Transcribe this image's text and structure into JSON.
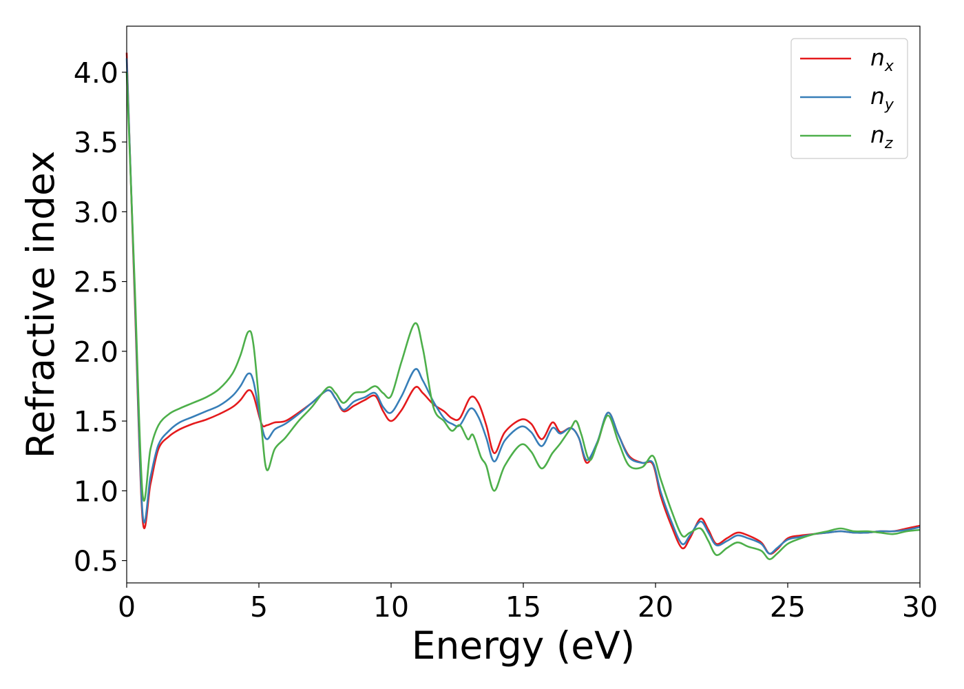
{
  "chart_data": {
    "type": "line",
    "xlabel": "Energy (eV)",
    "ylabel": "Refractive index",
    "xlim": [
      0,
      30
    ],
    "ylim": [
      0.34,
      4.33
    ],
    "x_ticks": [
      0,
      5,
      10,
      15,
      20,
      25,
      30
    ],
    "x_tick_labels": [
      "0",
      "5",
      "10",
      "15",
      "20",
      "25",
      "30"
    ],
    "y_ticks": [
      0.5,
      1.0,
      1.5,
      2.0,
      2.5,
      3.0,
      3.5,
      4.0
    ],
    "y_tick_labels": [
      "0.5",
      "1.0",
      "1.5",
      "2.0",
      "2.5",
      "3.0",
      "3.5",
      "4.0"
    ],
    "grid": false,
    "legend_position": "top-right",
    "series": [
      {
        "name": "n",
        "subscript": "x",
        "color": "#e41a1c",
        "points": [
          [
            0,
            4.14
          ],
          [
            0.3,
            2.4
          ],
          [
            0.6,
            0.8
          ],
          [
            0.9,
            1.05
          ],
          [
            1.2,
            1.3
          ],
          [
            1.6,
            1.39
          ],
          [
            2,
            1.44
          ],
          [
            2.5,
            1.48
          ],
          [
            3,
            1.51
          ],
          [
            3.5,
            1.55
          ],
          [
            4,
            1.6
          ],
          [
            4.3,
            1.65
          ],
          [
            4.6,
            1.72
          ],
          [
            4.8,
            1.68
          ],
          [
            5.1,
            1.48
          ],
          [
            5.3,
            1.47
          ],
          [
            5.6,
            1.49
          ],
          [
            6,
            1.5
          ],
          [
            6.5,
            1.56
          ],
          [
            7,
            1.63
          ],
          [
            7.6,
            1.72
          ],
          [
            7.9,
            1.66
          ],
          [
            8.2,
            1.57
          ],
          [
            8.6,
            1.61
          ],
          [
            9,
            1.65
          ],
          [
            9.4,
            1.68
          ],
          [
            9.7,
            1.57
          ],
          [
            10,
            1.5
          ],
          [
            10.4,
            1.58
          ],
          [
            10.9,
            1.74
          ],
          [
            11.2,
            1.7
          ],
          [
            11.6,
            1.62
          ],
          [
            12,
            1.57
          ],
          [
            12.3,
            1.52
          ],
          [
            12.6,
            1.52
          ],
          [
            13,
            1.67
          ],
          [
            13.3,
            1.63
          ],
          [
            13.6,
            1.47
          ],
          [
            13.9,
            1.27
          ],
          [
            14.3,
            1.42
          ],
          [
            14.9,
            1.51
          ],
          [
            15.3,
            1.48
          ],
          [
            15.7,
            1.37
          ],
          [
            16.1,
            1.49
          ],
          [
            16.4,
            1.42
          ],
          [
            16.8,
            1.45
          ],
          [
            17.1,
            1.38
          ],
          [
            17.4,
            1.2
          ],
          [
            17.8,
            1.34
          ],
          [
            18.2,
            1.56
          ],
          [
            18.6,
            1.4
          ],
          [
            19,
            1.25
          ],
          [
            19.5,
            1.2
          ],
          [
            19.9,
            1.19
          ],
          [
            20.2,
            0.96
          ],
          [
            20.6,
            0.75
          ],
          [
            21,
            0.59
          ],
          [
            21.3,
            0.66
          ],
          [
            21.7,
            0.8
          ],
          [
            22,
            0.72
          ],
          [
            22.3,
            0.62
          ],
          [
            22.7,
            0.66
          ],
          [
            23.1,
            0.7
          ],
          [
            23.5,
            0.68
          ],
          [
            24,
            0.63
          ],
          [
            24.3,
            0.55
          ],
          [
            24.6,
            0.58
          ],
          [
            25,
            0.66
          ],
          [
            25.5,
            0.68
          ],
          [
            26,
            0.69
          ],
          [
            26.5,
            0.7
          ],
          [
            27,
            0.71
          ],
          [
            27.5,
            0.7
          ],
          [
            28,
            0.7
          ],
          [
            28.5,
            0.71
          ],
          [
            29,
            0.71
          ],
          [
            29.5,
            0.73
          ],
          [
            30,
            0.75
          ]
        ]
      },
      {
        "name": "n",
        "subscript": "y",
        "color": "#377eb8",
        "points": [
          [
            0,
            4.1
          ],
          [
            0.3,
            2.45
          ],
          [
            0.6,
            0.84
          ],
          [
            0.9,
            1.1
          ],
          [
            1.2,
            1.33
          ],
          [
            1.6,
            1.43
          ],
          [
            2,
            1.49
          ],
          [
            2.5,
            1.53
          ],
          [
            3,
            1.57
          ],
          [
            3.5,
            1.61
          ],
          [
            4,
            1.68
          ],
          [
            4.3,
            1.75
          ],
          [
            4.6,
            1.84
          ],
          [
            4.8,
            1.78
          ],
          [
            5.1,
            1.47
          ],
          [
            5.3,
            1.37
          ],
          [
            5.6,
            1.44
          ],
          [
            6,
            1.48
          ],
          [
            6.5,
            1.55
          ],
          [
            7,
            1.63
          ],
          [
            7.6,
            1.72
          ],
          [
            7.9,
            1.66
          ],
          [
            8.2,
            1.58
          ],
          [
            8.6,
            1.64
          ],
          [
            9,
            1.67
          ],
          [
            9.4,
            1.7
          ],
          [
            9.7,
            1.6
          ],
          [
            10,
            1.56
          ],
          [
            10.4,
            1.68
          ],
          [
            10.9,
            1.87
          ],
          [
            11.2,
            1.79
          ],
          [
            11.6,
            1.64
          ],
          [
            12,
            1.52
          ],
          [
            12.3,
            1.48
          ],
          [
            12.6,
            1.47
          ],
          [
            13,
            1.59
          ],
          [
            13.3,
            1.53
          ],
          [
            13.6,
            1.38
          ],
          [
            13.9,
            1.21
          ],
          [
            14.3,
            1.36
          ],
          [
            14.9,
            1.46
          ],
          [
            15.3,
            1.42
          ],
          [
            15.7,
            1.32
          ],
          [
            16.1,
            1.45
          ],
          [
            16.4,
            1.41
          ],
          [
            16.8,
            1.45
          ],
          [
            17.1,
            1.38
          ],
          [
            17.4,
            1.22
          ],
          [
            17.8,
            1.35
          ],
          [
            18.2,
            1.56
          ],
          [
            18.6,
            1.4
          ],
          [
            19,
            1.24
          ],
          [
            19.5,
            1.2
          ],
          [
            19.9,
            1.2
          ],
          [
            20.2,
            0.99
          ],
          [
            20.6,
            0.78
          ],
          [
            21,
            0.62
          ],
          [
            21.3,
            0.68
          ],
          [
            21.7,
            0.78
          ],
          [
            22,
            0.7
          ],
          [
            22.3,
            0.61
          ],
          [
            22.7,
            0.64
          ],
          [
            23.1,
            0.68
          ],
          [
            23.5,
            0.66
          ],
          [
            24,
            0.62
          ],
          [
            24.3,
            0.55
          ],
          [
            24.6,
            0.59
          ],
          [
            25,
            0.65
          ],
          [
            25.5,
            0.67
          ],
          [
            26,
            0.69
          ],
          [
            26.5,
            0.7
          ],
          [
            27,
            0.71
          ],
          [
            27.5,
            0.7
          ],
          [
            28,
            0.7
          ],
          [
            28.5,
            0.71
          ],
          [
            29,
            0.71
          ],
          [
            29.5,
            0.72
          ],
          [
            30,
            0.74
          ]
        ]
      },
      {
        "name": "n",
        "subscript": "z",
        "color": "#4daf4a",
        "points": [
          [
            0,
            4.0
          ],
          [
            0.3,
            2.5
          ],
          [
            0.6,
            0.98
          ],
          [
            0.9,
            1.3
          ],
          [
            1.2,
            1.47
          ],
          [
            1.6,
            1.55
          ],
          [
            2,
            1.59
          ],
          [
            2.5,
            1.63
          ],
          [
            3,
            1.67
          ],
          [
            3.5,
            1.73
          ],
          [
            4,
            1.84
          ],
          [
            4.3,
            1.97
          ],
          [
            4.6,
            2.14
          ],
          [
            4.8,
            2.04
          ],
          [
            5.1,
            1.45
          ],
          [
            5.3,
            1.15
          ],
          [
            5.6,
            1.3
          ],
          [
            6,
            1.38
          ],
          [
            6.5,
            1.5
          ],
          [
            7,
            1.6
          ],
          [
            7.6,
            1.74
          ],
          [
            7.9,
            1.7
          ],
          [
            8.2,
            1.63
          ],
          [
            8.6,
            1.7
          ],
          [
            9,
            1.71
          ],
          [
            9.4,
            1.75
          ],
          [
            9.7,
            1.7
          ],
          [
            10,
            1.68
          ],
          [
            10.4,
            1.93
          ],
          [
            10.9,
            2.2
          ],
          [
            11.2,
            2.02
          ],
          [
            11.6,
            1.6
          ],
          [
            12,
            1.5
          ],
          [
            12.3,
            1.43
          ],
          [
            12.6,
            1.47
          ],
          [
            12.9,
            1.37
          ],
          [
            13.1,
            1.4
          ],
          [
            13.4,
            1.24
          ],
          [
            13.6,
            1.18
          ],
          [
            13.9,
            1.0
          ],
          [
            14.3,
            1.18
          ],
          [
            14.9,
            1.33
          ],
          [
            15.3,
            1.28
          ],
          [
            15.7,
            1.16
          ],
          [
            16.1,
            1.27
          ],
          [
            16.4,
            1.34
          ],
          [
            16.8,
            1.45
          ],
          [
            17.0,
            1.5
          ],
          [
            17.2,
            1.4
          ],
          [
            17.5,
            1.22
          ],
          [
            17.8,
            1.34
          ],
          [
            18.2,
            1.54
          ],
          [
            18.6,
            1.35
          ],
          [
            19,
            1.18
          ],
          [
            19.5,
            1.17
          ],
          [
            19.9,
            1.25
          ],
          [
            20.2,
            1.08
          ],
          [
            20.6,
            0.86
          ],
          [
            21,
            0.68
          ],
          [
            21.3,
            0.7
          ],
          [
            21.7,
            0.73
          ],
          [
            22,
            0.64
          ],
          [
            22.3,
            0.54
          ],
          [
            22.7,
            0.59
          ],
          [
            23.1,
            0.63
          ],
          [
            23.5,
            0.6
          ],
          [
            24,
            0.57
          ],
          [
            24.3,
            0.51
          ],
          [
            24.6,
            0.55
          ],
          [
            25,
            0.62
          ],
          [
            25.5,
            0.66
          ],
          [
            26,
            0.69
          ],
          [
            26.5,
            0.71
          ],
          [
            27,
            0.73
          ],
          [
            27.5,
            0.71
          ],
          [
            28,
            0.71
          ],
          [
            28.5,
            0.7
          ],
          [
            29,
            0.69
          ],
          [
            29.5,
            0.71
          ],
          [
            30,
            0.72
          ]
        ]
      }
    ]
  }
}
